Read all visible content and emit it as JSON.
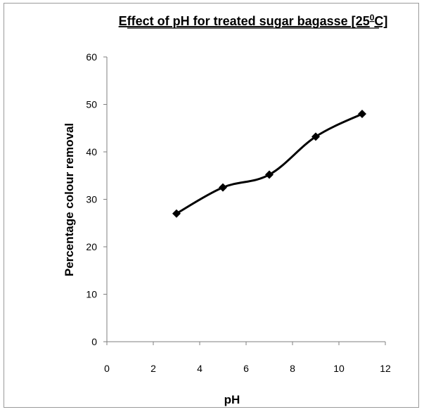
{
  "chart_data": {
    "type": "line",
    "title": "Effect of pH  for treated sugar bagasse [25",
    "title_superscript": "0",
    "title_suffix": "C]",
    "xlabel": "pH",
    "ylabel": "Percentage colour removal",
    "xlim": [
      0,
      12
    ],
    "ylim": [
      0,
      60
    ],
    "xticks": [
      "0",
      "2",
      "4",
      "6",
      "8",
      "10",
      "12"
    ],
    "yticks": [
      "0",
      "10",
      "20",
      "30",
      "40",
      "50",
      "60"
    ],
    "grid": false,
    "legend": "none",
    "series": [
      {
        "x": [
          3,
          5,
          7,
          9,
          11
        ],
        "y": [
          27,
          32.5,
          35.2,
          43.2,
          48
        ],
        "line_color": "#000000",
        "marker": "diamond"
      }
    ]
  }
}
